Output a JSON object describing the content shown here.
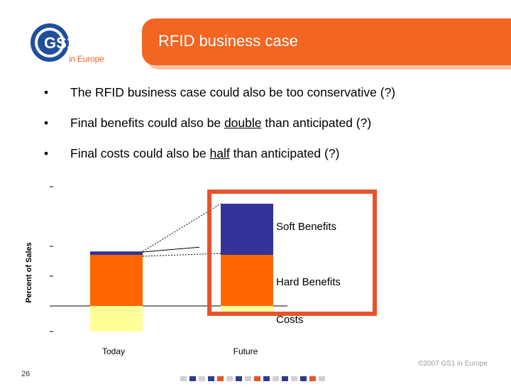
{
  "brand": {
    "logo_text": "GS1",
    "logo_subtext": "in Europe",
    "logo_color": "#1f4e9c",
    "accent_color": "#f26522"
  },
  "slide": {
    "title": "RFID business case",
    "page_number": "26",
    "copyright": "©2007 GS1 in Europe"
  },
  "bullets": [
    {
      "bullet": "•",
      "before": "The RFID business case could also be too conservative (?)",
      "underlined": "",
      "after": ""
    },
    {
      "bullet": "•",
      "before": "Final benefits could also be ",
      "underlined": "double",
      "after": " than anticipated (?)"
    },
    {
      "bullet": "•",
      "before": "Final costs could also be ",
      "underlined": "half",
      "after": " than anticipated (?)"
    }
  ],
  "chart_data": {
    "type": "bar",
    "ylabel": "Percent of Sales",
    "categories": [
      "Today",
      "Future"
    ],
    "series": [
      {
        "name": "Costs",
        "values": [
          -15,
          -5
        ],
        "color": "#ffff99"
      },
      {
        "name": "Hard Benefits",
        "values": [
          30,
          30
        ],
        "color": "#ff6600"
      },
      {
        "name": "Soft Benefits",
        "values": [
          2,
          30
        ],
        "color": "#333399"
      }
    ],
    "ylim": [
      -15,
      60
    ],
    "highlight": {
      "target": "Future",
      "color": "#e8532b"
    }
  },
  "footer_colors": [
    "#d0d0d0",
    "#2f3a8f",
    "#d0d0d0",
    "#2f3a8f",
    "#e8532b",
    "#d0d0d0",
    "#2f3a8f",
    "#d0d0d0",
    "#e8532b",
    "#2f3a8f",
    "#d0d0d0",
    "#2f3a8f",
    "#d0d0d0",
    "#2f3a8f",
    "#e8532b",
    "#d0d0d0"
  ]
}
